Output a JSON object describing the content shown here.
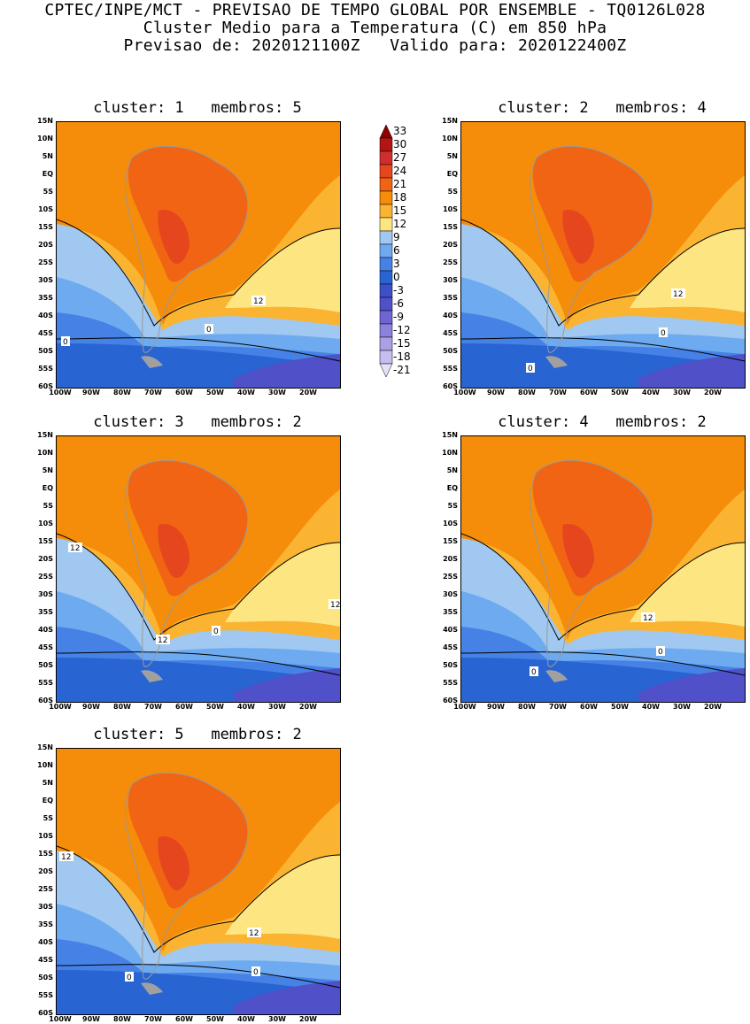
{
  "header": {
    "line1": "CPTEC/INPE/MCT - PREVISAO DE TEMPO GLOBAL POR ENSEMBLE - TQ0126L028",
    "line2": "Cluster Medio para a Temperatura (C) em 850 hPa",
    "line3": "Previsao de: 2020121100Z   Valido para: 2020122400Z"
  },
  "axes": {
    "lat_labels": [
      "15N",
      "10N",
      "5N",
      "EQ",
      "5S",
      "10S",
      "15S",
      "20S",
      "25S",
      "30S",
      "35S",
      "40S",
      "45S",
      "50S",
      "55S",
      "60S"
    ],
    "lon_labels": [
      "100W",
      "90W",
      "80W",
      "70W",
      "60W",
      "50W",
      "40W",
      "30W",
      "20W"
    ]
  },
  "colorbar": {
    "levels": [
      "33",
      "30",
      "27",
      "24",
      "21",
      "18",
      "15",
      "12",
      "9",
      "6",
      "3",
      "0",
      "-3",
      "-6",
      "-9",
      "-12",
      "-15",
      "-18",
      "-21"
    ],
    "colors": [
      "#8c0000",
      "#b41414",
      "#d22d2d",
      "#e6461e",
      "#f06414",
      "#f58c0a",
      "#fab432",
      "#fde682",
      "#a0c8f0",
      "#6eaaf0",
      "#4682e6",
      "#2864d2",
      "#3c50c8",
      "#5050c8",
      "#6e64d2",
      "#8c82dc",
      "#aaa0e6",
      "#c8beee",
      "#e6e0f8"
    ]
  },
  "panels": [
    {
      "id": 1,
      "title": "cluster: 1   membros: 5",
      "contour_labels": [
        "0",
        "0",
        "12"
      ]
    },
    {
      "id": 2,
      "title": "cluster: 2   membros: 4",
      "contour_labels": [
        "0",
        "0",
        "12"
      ]
    },
    {
      "id": 3,
      "title": "cluster: 3   membros: 2",
      "contour_labels": [
        "12",
        "12",
        "12",
        "0"
      ]
    },
    {
      "id": 4,
      "title": "cluster: 4   membros: 2",
      "contour_labels": [
        "12",
        "0",
        "0"
      ]
    },
    {
      "id": 5,
      "title": "cluster: 5   membros: 2",
      "contour_labels": [
        "12",
        "12",
        "0",
        "0"
      ]
    }
  ]
}
